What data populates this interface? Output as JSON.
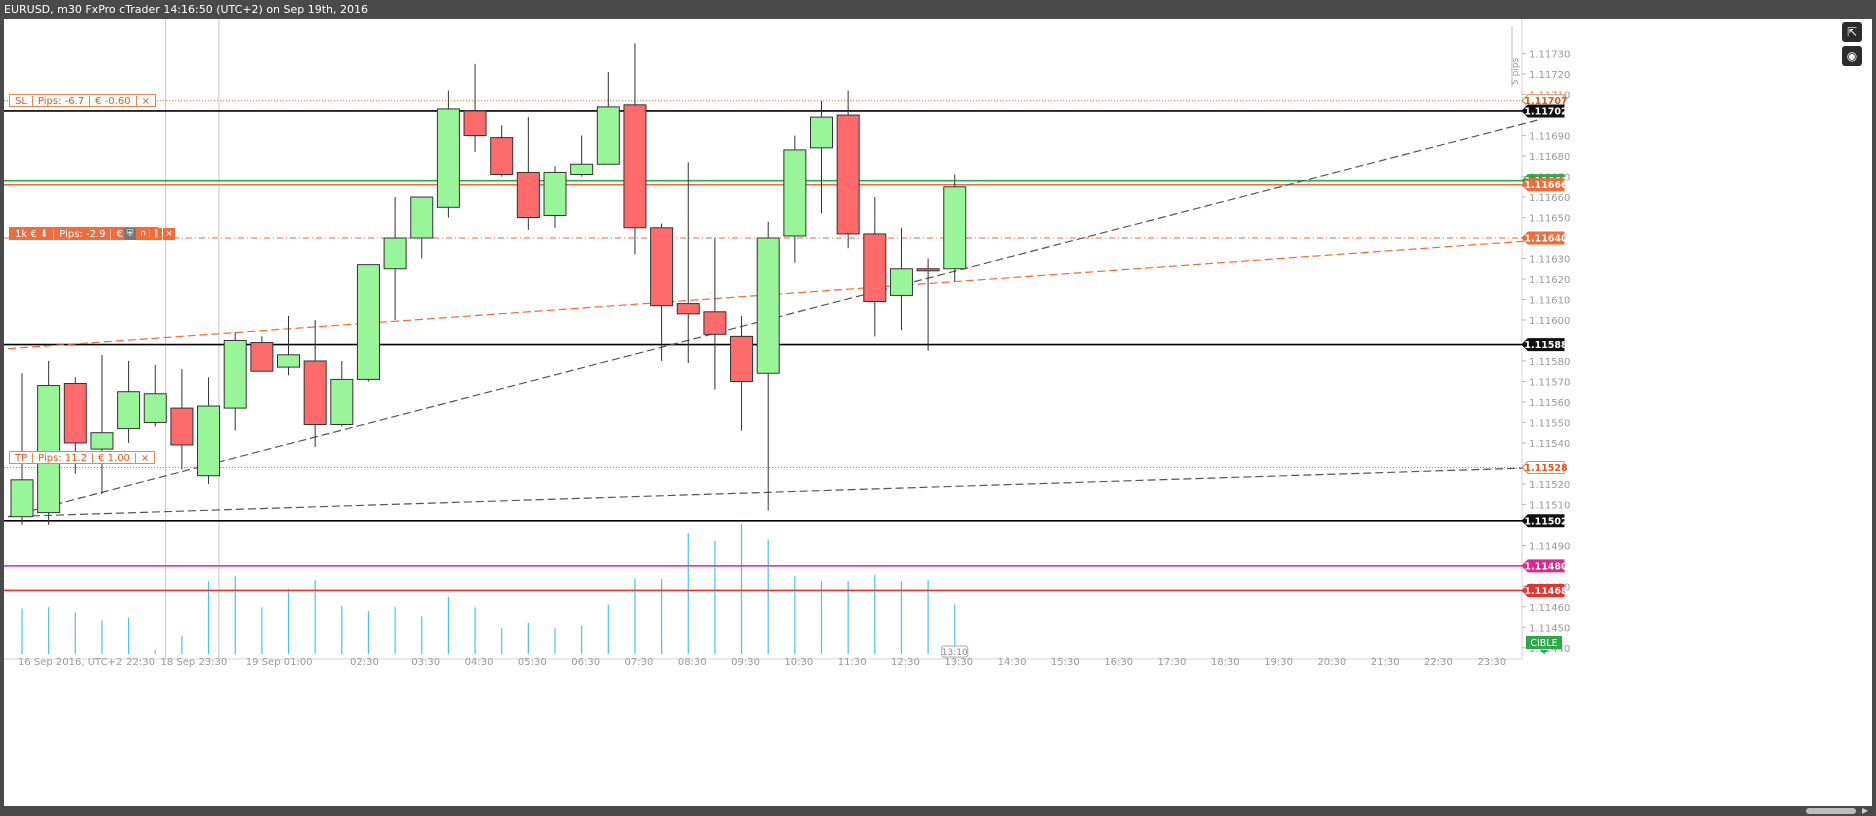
{
  "window_title": "EURUSD, m30 FxPro cTrader 14:16:50 (UTC+2) on Sep 19th, 2016",
  "y_axis_ticks": [
    "1.11730",
    "1.11720",
    "1.11710",
    "1.11690",
    "1.11680",
    "1.11670",
    "1.11660",
    "1.11650",
    "1.11630",
    "1.11620",
    "1.11610",
    "1.11600",
    "1.11580",
    "1.11570",
    "1.11560",
    "1.11550",
    "1.11540",
    "1.11520",
    "1.11510",
    "1.11490",
    "1.11470",
    "1.11460",
    "1.11450",
    "1.11440"
  ],
  "pip_scale_label": "5 pips",
  "x_axis_labels": [
    "16 Sep 2016, UTC+2",
    "22:30",
    "18 Sep 23:30",
    "19 Sep 01:00",
    "02:30",
    "03:30",
    "04:30",
    "05:30",
    "06:30",
    "07:30",
    "08:30",
    "09:30",
    "10:30",
    "11:30",
    "12:30",
    "13:30",
    "14:30",
    "15:30",
    "16:30",
    "17:30",
    "18:30",
    "19:30",
    "20:30",
    "21:30",
    "22:30",
    "23:30"
  ],
  "countdown_label": "13:10",
  "price_tags": {
    "sl": "1.11707",
    "resistance_high": "1.11702",
    "green_line": "1.11668",
    "orange_line": "1.11666",
    "entry": "1.11640",
    "support_mid": "1.11588",
    "tp": "1.11528",
    "support_low": "1.11502",
    "magenta_line": "1.11480",
    "red_line": "1.11468",
    "cible": "CIBLE"
  },
  "orders": {
    "sl": {
      "label": "SL",
      "pips": "Pips: -6.7",
      "amount": "€ -0.60",
      "close": "×"
    },
    "position": {
      "size": "1k € ⬇",
      "pips": "Pips: -2.9",
      "amount": "€ -0.26",
      "close": "×"
    },
    "tp": {
      "label": "TP",
      "pips": "Pips: 11.2",
      "amount": "€ 1.00",
      "close": "×"
    }
  },
  "colors": {
    "bull": "#98f598",
    "bear": "#ff6b6b",
    "volume": "#45c7e8",
    "green_line": "#2ea84a",
    "orange_line": "#f26b3a",
    "magenta": "#e0268c",
    "red": "#e5332f",
    "order": "#f26b3a"
  },
  "chart_data": {
    "type": "candlestick",
    "symbol": "EURUSD",
    "timeframe": "m30",
    "ylim": [
      1.11437,
      1.11742
    ],
    "candles": [
      {
        "o": 1.11504,
        "h": 1.11574,
        "l": 1.115,
        "c": 1.11522
      },
      {
        "o": 1.11506,
        "h": 1.1158,
        "l": 1.115,
        "c": 1.11568
      },
      {
        "o": 1.11569,
        "h": 1.11572,
        "l": 1.11525,
        "c": 1.1154
      },
      {
        "o": 1.11537,
        "h": 1.11583,
        "l": 1.11515,
        "c": 1.11545
      },
      {
        "o": 1.11547,
        "h": 1.1158,
        "l": 1.1154,
        "c": 1.11565
      },
      {
        "o": 1.1155,
        "h": 1.11578,
        "l": 1.11548,
        "c": 1.11564
      },
      {
        "o": 1.11557,
        "h": 1.11576,
        "l": 1.11527,
        "c": 1.11539
      },
      {
        "o": 1.11524,
        "h": 1.11572,
        "l": 1.1152,
        "c": 1.11558
      },
      {
        "o": 1.11557,
        "h": 1.11594,
        "l": 1.11546,
        "c": 1.1159
      },
      {
        "o": 1.11589,
        "h": 1.11592,
        "l": 1.11575,
        "c": 1.11575
      },
      {
        "o": 1.11577,
        "h": 1.11602,
        "l": 1.11573,
        "c": 1.11583
      },
      {
        "o": 1.1158,
        "h": 1.116,
        "l": 1.11538,
        "c": 1.11549
      },
      {
        "o": 1.11549,
        "h": 1.1158,
        "l": 1.11548,
        "c": 1.11571
      },
      {
        "o": 1.11571,
        "h": 1.11625,
        "l": 1.1157,
        "c": 1.11627
      },
      {
        "o": 1.11625,
        "h": 1.1166,
        "l": 1.116,
        "c": 1.1164
      },
      {
        "o": 1.1164,
        "h": 1.11658,
        "l": 1.1163,
        "c": 1.1166
      },
      {
        "o": 1.11655,
        "h": 1.11712,
        "l": 1.1165,
        "c": 1.11703
      },
      {
        "o": 1.11702,
        "h": 1.11725,
        "l": 1.11682,
        "c": 1.1169
      },
      {
        "o": 1.11689,
        "h": 1.11695,
        "l": 1.1167,
        "c": 1.11671
      },
      {
        "o": 1.11672,
        "h": 1.11699,
        "l": 1.11644,
        "c": 1.1165
      },
      {
        "o": 1.11651,
        "h": 1.11675,
        "l": 1.11645,
        "c": 1.11672
      },
      {
        "o": 1.11671,
        "h": 1.1169,
        "l": 1.1167,
        "c": 1.11676
      },
      {
        "o": 1.11676,
        "h": 1.11721,
        "l": 1.11676,
        "c": 1.11704
      },
      {
        "o": 1.11705,
        "h": 1.11735,
        "l": 1.11632,
        "c": 1.11645
      },
      {
        "o": 1.11645,
        "h": 1.11647,
        "l": 1.1158,
        "c": 1.11607
      },
      {
        "o": 1.11608,
        "h": 1.11677,
        "l": 1.11579,
        "c": 1.11603
      },
      {
        "o": 1.11604,
        "h": 1.1164,
        "l": 1.11566,
        "c": 1.11593
      },
      {
        "o": 1.11592,
        "h": 1.11602,
        "l": 1.11546,
        "c": 1.1157
      },
      {
        "o": 1.11574,
        "h": 1.11648,
        "l": 1.11507,
        "c": 1.1164
      },
      {
        "o": 1.11641,
        "h": 1.1169,
        "l": 1.11628,
        "c": 1.11683
      },
      {
        "o": 1.11684,
        "h": 1.11707,
        "l": 1.11652,
        "c": 1.11699
      },
      {
        "o": 1.117,
        "h": 1.11712,
        "l": 1.11635,
        "c": 1.11642
      },
      {
        "o": 1.11642,
        "h": 1.1166,
        "l": 1.11592,
        "c": 1.11609
      },
      {
        "o": 1.11612,
        "h": 1.11645,
        "l": 1.11595,
        "c": 1.11625
      },
      {
        "o": 1.11625,
        "h": 1.1163,
        "l": 1.11585,
        "c": 1.11624
      },
      {
        "o": 1.11625,
        "h": 1.11671,
        "l": 1.11619,
        "c": 1.11665
      }
    ],
    "volume_ratios": [
      0.35,
      0.36,
      0.32,
      0.26,
      0.28,
      0.03,
      0.14,
      0.56,
      0.6,
      0.36,
      0.5,
      0.57,
      0.37,
      0.33,
      0.36,
      0.29,
      0.44,
      0.36,
      0.2,
      0.24,
      0.2,
      0.22,
      0.38,
      0.58,
      0.58,
      0.93,
      0.87,
      1.0,
      0.88,
      0.6,
      0.56,
      0.56,
      0.61,
      0.56,
      0.57,
      0.38
    ],
    "horizontal_lines": [
      {
        "price": 1.11707,
        "color": "#f26b3a",
        "style": "dotted"
      },
      {
        "price": 1.11702,
        "color": "#000000",
        "style": "solid"
      },
      {
        "price": 1.11668,
        "color": "#2ea84a",
        "style": "solid"
      },
      {
        "price": 1.11666,
        "color": "#f26b3a",
        "style": "solid"
      },
      {
        "price": 1.1164,
        "color": "#f26b3a",
        "style": "dashdot"
      },
      {
        "price": 1.11588,
        "color": "#000000",
        "style": "solid"
      },
      {
        "price": 1.11528,
        "color": "#f26b3a",
        "style": "dotted"
      },
      {
        "price": 1.11502,
        "color": "#000000",
        "style": "solid"
      },
      {
        "price": 1.1148,
        "color": "#e0268c",
        "style": "solid"
      },
      {
        "price": 1.11468,
        "color": "#e5332f",
        "style": "solid"
      }
    ],
    "trend_lines": [
      {
        "from": [
          0,
          1.11586
        ],
        "to": [
          57,
          1.11639
        ],
        "color": "#f26b3a",
        "style": "dashed"
      },
      {
        "from": [
          0,
          1.11504
        ],
        "to": [
          57,
          1.11698
        ],
        "color": "#555555",
        "style": "dashed"
      },
      {
        "from": [
          0,
          1.11504
        ],
        "to": [
          57,
          1.11528
        ],
        "color": "#555555",
        "style": "dashed"
      }
    ],
    "vertical_markers": [
      5.5,
      7.5
    ]
  }
}
